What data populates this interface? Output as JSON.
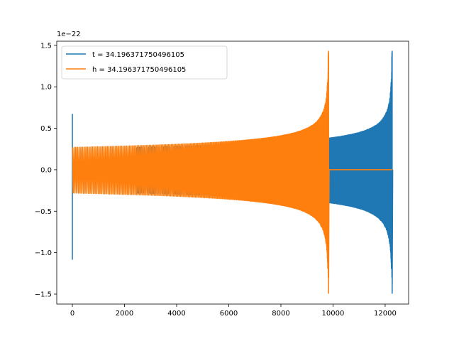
{
  "chart_data": {
    "type": "line",
    "title": "",
    "xlabel": "",
    "ylabel": "",
    "y_offset_label": "1e−22",
    "xlim": [
      -600,
      12900
    ],
    "ylim": [
      -1.62,
      1.55
    ],
    "x_ticks": [
      0,
      2000,
      4000,
      6000,
      8000,
      10000,
      12000
    ],
    "x_tick_labels": [
      "0",
      "2000",
      "4000",
      "6000",
      "8000",
      "10000",
      "12000"
    ],
    "y_ticks": [
      -1.5,
      -1.0,
      -0.5,
      0.0,
      0.5,
      1.0,
      1.5
    ],
    "y_tick_labels": [
      "−1.5",
      "−1.0",
      "−0.5",
      "0.0",
      "0.5",
      "1.0",
      "1.5"
    ],
    "grid": false,
    "legend_position": "upper-left",
    "series": [
      {
        "name": "t = 34.196371750496105",
        "color": "#1f77b4",
        "initial_spike": {
          "x": 0,
          "max": 0.67,
          "min": -1.08
        },
        "segment_start": 2450,
        "merger_x": 12270,
        "start_amplitude": 0.27,
        "peak_max": 1.43,
        "peak_min": -1.49,
        "n_cycles": 240
      },
      {
        "name": "h = 34.196371750496105",
        "color": "#ff7f0e",
        "segment_start": 0,
        "merger_x": 9830,
        "start_amplitude": 0.27,
        "peak_max": 1.43,
        "peak_min": -1.49,
        "n_cycles": 240
      }
    ]
  }
}
